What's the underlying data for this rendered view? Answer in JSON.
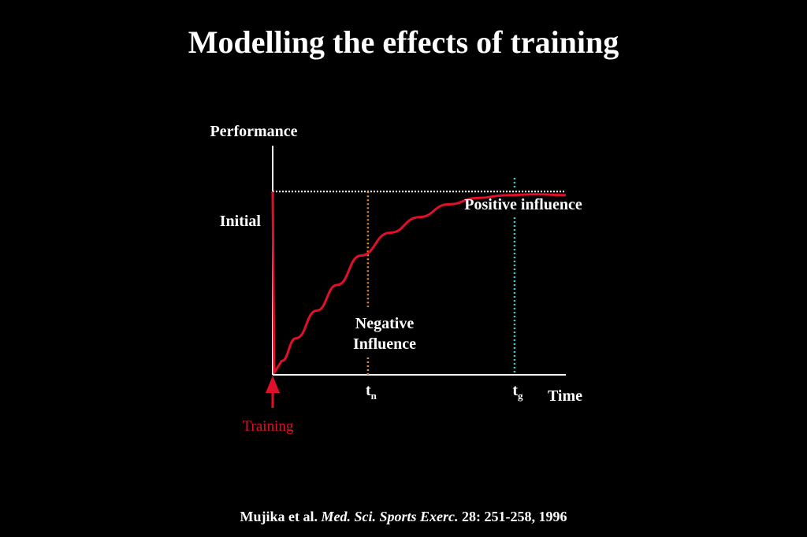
{
  "slide": {
    "title": "Modelling the effects of training",
    "citation": {
      "authors": "Mujika et al.",
      "journal": "Med. Sci. Sports Exerc.",
      "details": "28: 251-258, 1996"
    }
  },
  "colors": {
    "background": "#000000",
    "text": "#ffffff",
    "curve": "#e0102a",
    "negative_marker": "#e08a3c",
    "positive_marker": "#3cc8c8",
    "baseline": "#ffffff"
  },
  "chart_data": {
    "type": "line",
    "title": "",
    "ylabel": "Performance",
    "xlabel": "Time",
    "axes_numeric": false,
    "baseline_label": "Initial",
    "series": [
      {
        "name": "",
        "color": "#e0102a",
        "x": [
          0,
          0.5,
          3,
          8,
          15,
          22,
          30,
          40,
          50,
          60,
          70,
          80,
          90,
          100
        ],
        "y": [
          1.0,
          -0.98,
          -0.85,
          -0.6,
          -0.3,
          -0.02,
          0.3,
          0.55,
          0.72,
          0.86,
          0.93,
          0.96,
          0.97,
          0.96
        ]
      }
    ],
    "x_range": [
      0,
      100
    ],
    "y_range": [
      -1.0,
      1.5
    ],
    "baseline_value": 1.0,
    "markers": [
      {
        "id": "tn",
        "base": "t",
        "sub": "n",
        "x": 32.5,
        "color": "#e08a3c"
      },
      {
        "id": "tg",
        "base": "t",
        "sub": "g",
        "x": 82.5,
        "color": "#3cc8c8"
      }
    ],
    "annotations": {
      "positive": "Positive influence",
      "negative_line1": "Negative",
      "negative_line2": "Influence"
    },
    "event_label": "Training",
    "event_color": "#e0102a",
    "grid": false,
    "legend": "none"
  }
}
